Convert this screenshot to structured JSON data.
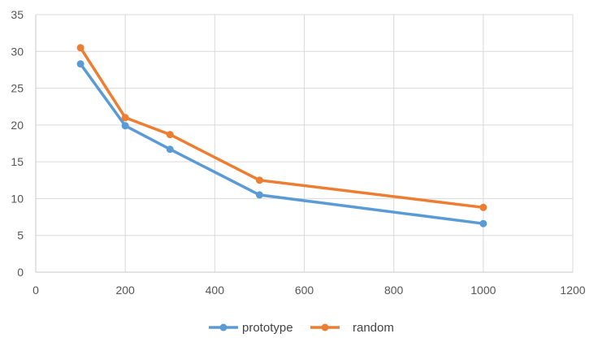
{
  "chart_data": {
    "type": "line",
    "x_ticks": [
      0,
      200,
      400,
      600,
      800,
      1000,
      1200
    ],
    "y_ticks": [
      0,
      5,
      10,
      15,
      20,
      25,
      30,
      35
    ],
    "xlim": [
      0,
      1200
    ],
    "ylim": [
      0,
      35
    ],
    "grid": true,
    "legend_position": "bottom-center",
    "series": [
      {
        "name": "prototype",
        "color": "#5b9bd5",
        "x": [
          100,
          200,
          300,
          500,
          1000
        ],
        "y": [
          28.3,
          19.9,
          16.7,
          10.5,
          6.6
        ]
      },
      {
        "name": "random",
        "color": "#ed7d31",
        "x": [
          100,
          200,
          300,
          500,
          1000
        ],
        "y": [
          30.5,
          21.0,
          18.7,
          12.5,
          8.8
        ]
      }
    ]
  }
}
